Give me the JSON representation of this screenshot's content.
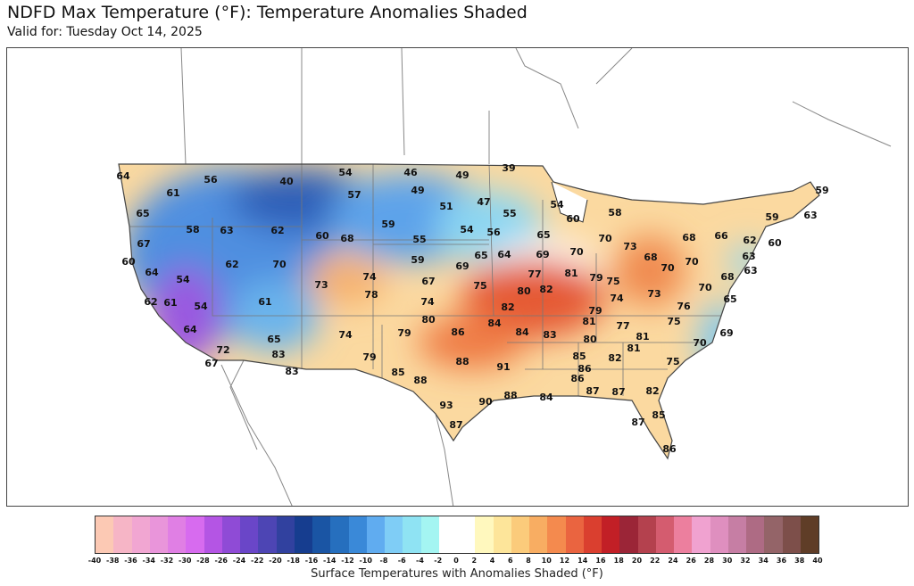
{
  "header": {
    "title": "NDFD Max Temperature (°F): Temperature Anomalies Shaded",
    "subtitle": "Valid for: Tuesday Oct 14, 2025"
  },
  "map": {
    "temperature_labels": [
      64,
      56,
      61,
      65,
      58,
      63,
      62,
      67,
      60,
      64,
      54,
      62,
      70,
      62,
      61,
      54,
      64,
      72,
      67,
      61,
      65,
      83,
      83,
      40,
      54,
      57,
      60,
      68,
      73,
      74,
      78,
      74,
      79,
      59,
      39,
      46,
      49,
      49,
      51,
      47,
      55,
      54,
      60,
      58,
      55,
      54,
      56,
      65,
      70,
      59,
      69,
      65,
      64,
      69,
      70,
      77,
      81,
      79,
      75,
      67,
      75,
      80,
      82,
      74,
      82,
      80,
      84,
      79,
      86,
      59,
      63,
      59,
      68,
      66,
      62,
      60,
      73,
      68,
      70,
      63,
      63,
      70,
      68,
      70,
      65,
      73,
      74,
      76,
      79,
      75,
      81,
      77,
      69,
      80,
      81,
      70,
      85,
      82,
      81,
      75,
      88,
      91,
      86,
      85,
      88,
      86,
      87,
      87,
      82,
      93,
      90,
      88,
      84,
      87,
      87,
      85,
      86,
      84,
      83
    ]
  },
  "colorbar": {
    "title": "Surface Temperatures with Anomalies Shaded (°F)",
    "ticks": [
      "-40",
      "-38",
      "-36",
      "-34",
      "-32",
      "-30",
      "-28",
      "-26",
      "-24",
      "-22",
      "-20",
      "-18",
      "-16",
      "-14",
      "-12",
      "-10",
      "-8",
      "-6",
      "-4",
      "-2",
      "0",
      "2",
      "4",
      "6",
      "8",
      "10",
      "12",
      "14",
      "16",
      "18",
      "20",
      "22",
      "24",
      "26",
      "28",
      "30",
      "32",
      "34",
      "36",
      "38",
      "40"
    ],
    "colors": [
      "#fcc9b4",
      "#f6b5c6",
      "#f1a6d2",
      "#e995da",
      "#e07fe4",
      "#d76bef",
      "#b455e4",
      "#8f4bd6",
      "#6a46c8",
      "#4d45b4",
      "#31419f",
      "#163d8f",
      "#1a55a4",
      "#266fbe",
      "#3a89d8",
      "#60acf0",
      "#7fcdf6",
      "#8fe3f3",
      "#a4f5f2",
      "#ffffff",
      "#ffffff",
      "#fff8be",
      "#fde59a",
      "#fbcb7b",
      "#f8ad62",
      "#f48a4e",
      "#ea6440",
      "#da3f2f",
      "#c21f26",
      "#9b2537",
      "#b4414e",
      "#d45c6f",
      "#ec7f9e",
      "#f0a2d0",
      "#df8fbf",
      "#c67ea4",
      "#ae6b84",
      "#946468",
      "#7d4f4a",
      "#5f3d27"
    ]
  }
}
